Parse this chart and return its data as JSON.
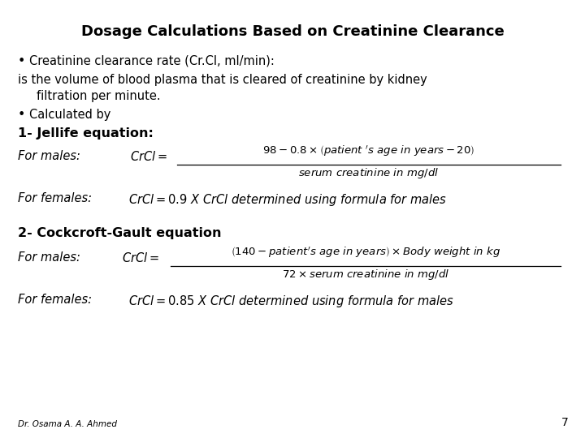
{
  "title": "Dosage Calculations Based on Creatinine Clearance",
  "bg_color": "#ffffff",
  "text_color": "#000000",
  "title_fontsize": 13,
  "body_fontsize": 10.5,
  "italic_fontsize": 10.5,
  "bold_section_fontsize": 11.5,
  "footer_fontsize": 7.5,
  "formula_fontsize": 9.5,
  "footer_text": "Dr. Osama A. A. Ahmed",
  "page_number": "7"
}
